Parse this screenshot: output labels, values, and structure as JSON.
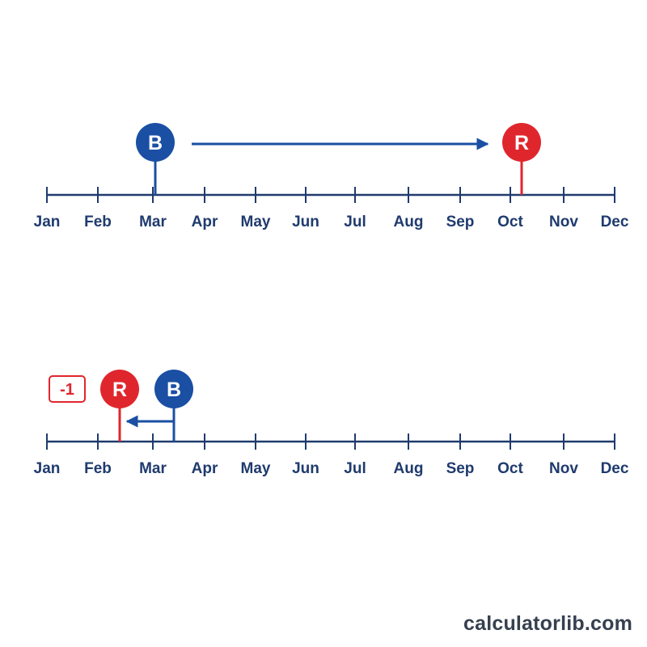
{
  "months": [
    "Jan",
    "Feb",
    "Mar",
    "Apr",
    "May",
    "Jun",
    "Jul",
    "Aug",
    "Sep",
    "Oct",
    "Nov",
    "Dec"
  ],
  "colors": {
    "axis": "#1f3b6e",
    "blue": "#1a4fa3",
    "red": "#e0262d"
  },
  "timelines": [
    {
      "id": "timeline-top",
      "markers": [
        {
          "letter": "B",
          "color": "blue",
          "position": "Mar",
          "icon": "b-pin-icon"
        },
        {
          "letter": "R",
          "color": "red",
          "position": "Oct",
          "icon": "r-pin-icon"
        }
      ],
      "arrow": {
        "from": "B",
        "to": "R",
        "direction": "right"
      }
    },
    {
      "id": "timeline-bottom",
      "markers": [
        {
          "letter": "B",
          "color": "blue",
          "position": "Mar",
          "icon": "b-pin-icon"
        },
        {
          "letter": "R",
          "color": "red",
          "position": "Feb",
          "icon": "r-pin-icon"
        }
      ],
      "arrow": {
        "from": "B",
        "to": "R",
        "direction": "left"
      },
      "badge": {
        "text": "-1",
        "color": "red"
      }
    }
  ],
  "watermark": "calculatorlib.com"
}
